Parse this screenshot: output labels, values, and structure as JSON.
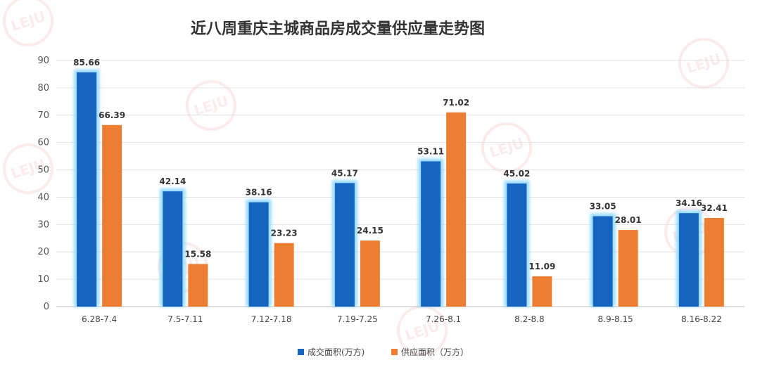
{
  "chart_data": {
    "type": "bar",
    "title": "近八周重庆主城商品房成交量供应量走势图",
    "categories": [
      "6.28-7.4",
      "7.5-7.11",
      "7.12-7.18",
      "7.19-7.25",
      "7.26-8.1",
      "8.2-8.8",
      "8.9-8.15",
      "8.16-8.22"
    ],
    "series": [
      {
        "name": "成交面积(万方)",
        "values": [
          85.66,
          42.14,
          38.16,
          45.17,
          53.11,
          45.02,
          33.05,
          34.16
        ],
        "color": "#1565C0",
        "glow": "#8fd8ff"
      },
      {
        "name": "供应面积（万方）",
        "values": [
          66.39,
          15.58,
          23.23,
          24.15,
          71.02,
          11.09,
          28.01,
          32.41
        ],
        "color": "#ED7D31"
      }
    ],
    "yticks": [
      "0",
      "10",
      "20",
      "30",
      "40",
      "50",
      "60",
      "70",
      "80",
      "90"
    ],
    "ylim": [
      0,
      90
    ],
    "grid": true,
    "legend_position": "bottom",
    "watermark": "乐居 LEJU.COM"
  }
}
